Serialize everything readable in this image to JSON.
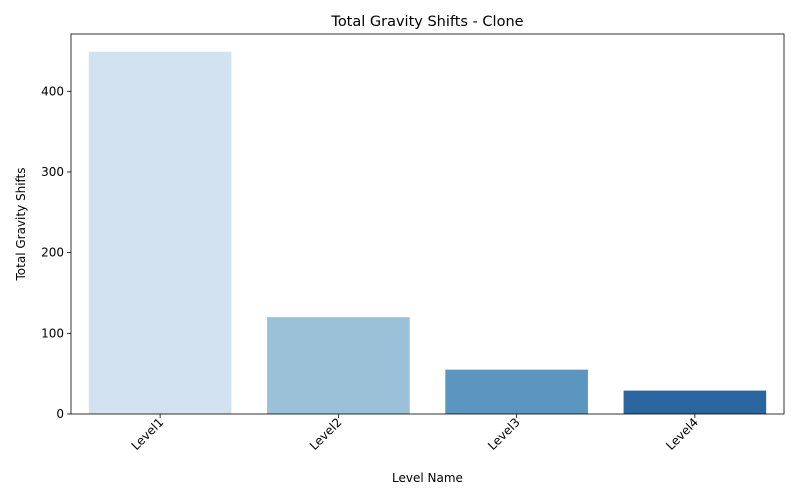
{
  "chart_data": {
    "type": "bar",
    "title": "Total Gravity Shifts - Clone",
    "xlabel": "Level Name",
    "ylabel": "Total Gravity Shifts",
    "categories": [
      "Level1",
      "Level2",
      "Level3",
      "Level4"
    ],
    "values": [
      449,
      120,
      55,
      29
    ],
    "colors": [
      "#d3e2f0",
      "#9ac1d7",
      "#5a96bf",
      "#2b65a0"
    ],
    "ylim": [
      0,
      471
    ],
    "yticks": [
      0,
      100,
      200,
      300,
      400
    ],
    "xtick_rotation": 45,
    "grid": false,
    "legend": "none"
  }
}
